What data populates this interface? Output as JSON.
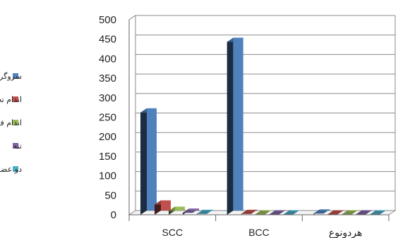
{
  "chart_data": {
    "type": "bar",
    "variant": "3d-clustered",
    "title": "",
    "xlabel": "",
    "ylabel": "",
    "ylim": [
      0,
      500
    ],
    "yticks": [
      0,
      50,
      100,
      150,
      200,
      250,
      300,
      350,
      400,
      450,
      500
    ],
    "grid": true,
    "legend_position": "left",
    "categories": [
      "SCC",
      "BCC",
      "هردونوع"
    ],
    "series": [
      {
        "name": "سروگردن",
        "color": "#4F81BD",
        "values": [
          262,
          443,
          3
        ]
      },
      {
        "name": "اندام تحتانی",
        "color": "#C0504D",
        "values": [
          26,
          2,
          1
        ]
      },
      {
        "name": "اندام فوقانی",
        "color": "#9BBB59",
        "values": [
          10,
          1,
          1
        ]
      },
      {
        "name": "تنه",
        "color": "#8064A2",
        "values": [
          5,
          1,
          1
        ]
      },
      {
        "name": "دو عضو درگیر",
        "color": "#4BACC6",
        "values": [
          2,
          1,
          1
        ]
      }
    ]
  }
}
